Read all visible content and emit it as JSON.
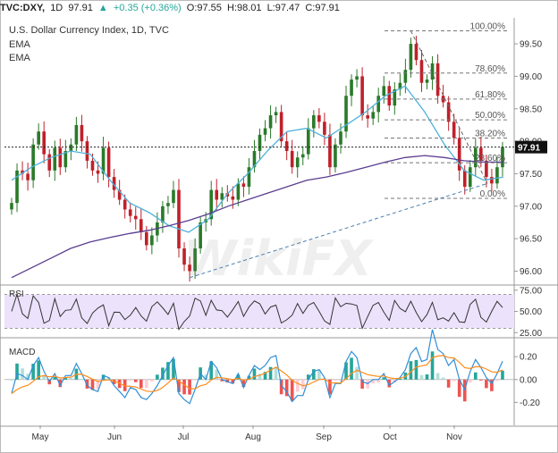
{
  "header": {
    "symbol": "TVC:DXY,",
    "interval": "1D",
    "last": "97.91",
    "change": "+0.35 (+0.36%)",
    "open": "O:97.55",
    "high": "H:98.01",
    "low": "L:97.47",
    "close": "C:97.91"
  },
  "legend": {
    "title": "U.S. Dollar Currency Index, 1D, TVC",
    "ema1": "EMA",
    "ema2": "EMA"
  },
  "watermark": "WikiFX",
  "chart_data": {
    "type": "candlestick",
    "title": "U.S. Dollar Currency Index, 1D, TVC",
    "last_price": 97.91,
    "price_axis": {
      "ticks": [
        "99.50",
        "99.00",
        "98.50",
        "98.00",
        "97.50",
        "97.00",
        "96.50",
        "96.00"
      ],
      "range": [
        95.8,
        99.9
      ]
    },
    "x_ticks": [
      "May",
      "Jun",
      "Jul",
      "Aug",
      "Sep",
      "Oct",
      "Nov"
    ],
    "fibonacci": [
      {
        "label": "100.00%",
        "value": 99.7
      },
      {
        "label": "78.60%",
        "value": 99.05
      },
      {
        "label": "61.80%",
        "value": 98.65
      },
      {
        "label": "50.00%",
        "value": 98.33
      },
      {
        "label": "38.20%",
        "value": 98.05
      },
      {
        "label": "23.60%",
        "value": 97.67
      },
      {
        "label": "0.00%",
        "value": 97.12
      }
    ],
    "ema_fast": [
      97.4,
      97.6,
      97.75,
      97.85,
      97.8,
      97.4,
      97.05,
      96.9,
      96.7,
      96.6,
      96.8,
      97.2,
      97.5,
      97.85,
      98.15,
      98.2,
      98.05,
      98.25,
      98.45,
      98.7,
      98.85,
      98.45,
      97.95,
      97.55,
      97.4,
      97.45
    ],
    "ema_slow": [
      95.9,
      96.05,
      96.2,
      96.35,
      96.45,
      96.52,
      96.58,
      96.63,
      96.7,
      96.78,
      96.88,
      97.0,
      97.1,
      97.2,
      97.3,
      97.4,
      97.45,
      97.52,
      97.6,
      97.68,
      97.75,
      97.78,
      97.75,
      97.7,
      97.68,
      97.68
    ],
    "rsi": {
      "ticks": [
        "75.00",
        "50.00",
        "25.00"
      ],
      "range": [
        20,
        80
      ],
      "band": [
        70,
        30
      ]
    },
    "macd": {
      "ticks": [
        "0.20",
        "0.00",
        "-0.20"
      ],
      "range": [
        -0.4,
        0.35
      ]
    },
    "series": [
      {
        "name": "price",
        "values": [
          97.05,
          97.55,
          97.5,
          97.4,
          97.95,
          98.15,
          97.8,
          97.55,
          97.9,
          97.6,
          97.85,
          97.95,
          98.25,
          98.0,
          97.7,
          97.55,
          97.5,
          97.9,
          97.45,
          97.25,
          97.1,
          96.95,
          96.85,
          96.8,
          96.6,
          96.4,
          96.55,
          96.75,
          97.0,
          97.05,
          97.25,
          96.35,
          96.1,
          96.0,
          96.35,
          96.75,
          96.8,
          97.25,
          97.1,
          97.2,
          97.15,
          97.1,
          97.35,
          97.3,
          97.6,
          97.85,
          98.1,
          98.2,
          98.4,
          98.45,
          98.0,
          97.85,
          97.6,
          97.75,
          97.8,
          98.2,
          98.4,
          98.3,
          98.1,
          97.6,
          97.95,
          98.15,
          98.7,
          98.95,
          99.0,
          98.4,
          98.35,
          98.45,
          98.7,
          98.85,
          98.55,
          98.8,
          98.9,
          99.1,
          99.5,
          99.25,
          98.9,
          98.95,
          99.2,
          98.7,
          98.6,
          98.3,
          98.05,
          97.55,
          97.3,
          97.6,
          97.9,
          97.7,
          97.45,
          97.35,
          97.6,
          97.91
        ]
      }
    ]
  }
}
